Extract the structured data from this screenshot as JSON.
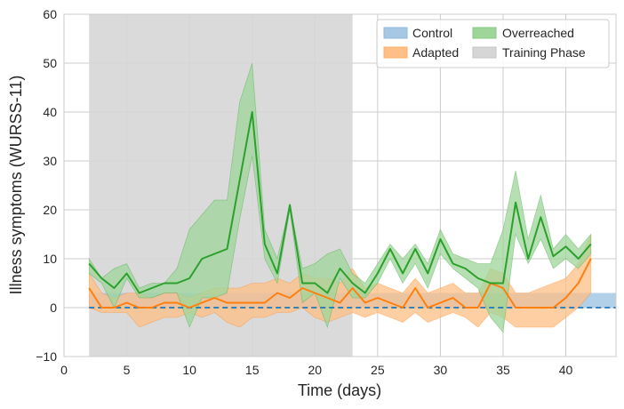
{
  "chart_data": {
    "type": "line",
    "xlabel": "Time (days)",
    "ylabel": "Illness symptoms (WURSS-11)",
    "xlim": [
      0,
      44
    ],
    "ylim": [
      -10,
      60
    ],
    "xticks": [
      0,
      5,
      10,
      15,
      20,
      25,
      30,
      35,
      40
    ],
    "yticks": [
      -10,
      0,
      10,
      20,
      30,
      40,
      50,
      60
    ],
    "grid": true,
    "legend_position": "top-right",
    "legend": [
      "Control",
      "Adapted",
      "Overreached",
      "Training Phase"
    ],
    "training_phase": {
      "label": "Training Phase",
      "x_start": 2,
      "x_end": 23,
      "color": "#d6d6d6"
    },
    "control": {
      "name": "Control",
      "color": "#1f77b4",
      "band_color": "#a6c8e5",
      "mean": 0,
      "band": [
        0,
        3
      ],
      "x_start": 2,
      "x_end": 44
    },
    "series": [
      {
        "name": "Adapted",
        "color": "#ff7f0e",
        "band_color": "#ffbf86",
        "x": [
          2,
          3,
          4,
          5,
          6,
          7,
          8,
          9,
          10,
          11,
          12,
          13,
          14,
          15,
          16,
          17,
          18,
          19,
          20,
          21,
          22,
          23,
          24,
          25,
          26,
          27,
          28,
          29,
          30,
          31,
          32,
          33,
          34,
          35,
          36,
          37,
          38,
          39,
          40,
          41,
          42
        ],
        "y": [
          4,
          0,
          0,
          1,
          0,
          0,
          1,
          1,
          0,
          1,
          2,
          1,
          1,
          1,
          1,
          3,
          2,
          4,
          3,
          2,
          1,
          4,
          1,
          2,
          1,
          0,
          4,
          0,
          1,
          2,
          0,
          0,
          5,
          4,
          0,
          0,
          0,
          0,
          2,
          5,
          10
        ],
        "lower": [
          0,
          -1,
          -1,
          -1,
          -4,
          -3,
          -2,
          -2,
          -1,
          -2,
          -1,
          -3,
          -4,
          -2,
          -2,
          -1,
          -1,
          0,
          -2,
          -3,
          -2,
          -1,
          -2,
          -1,
          -2,
          -3,
          -1,
          -3,
          -2,
          -1,
          -2,
          -4,
          -1,
          -2,
          -4,
          -4,
          -4,
          -4,
          -2,
          0,
          3
        ],
        "upper": [
          7,
          3,
          2,
          3,
          3,
          2,
          3,
          3,
          2,
          3,
          4,
          4,
          4,
          5,
          5,
          6,
          5,
          7,
          6,
          6,
          5,
          8,
          4,
          5,
          4,
          3,
          6,
          3,
          4,
          5,
          3,
          3,
          8,
          7,
          3,
          3,
          4,
          5,
          6,
          9,
          15
        ]
      },
      {
        "name": "Overreached",
        "color": "#2ca02c",
        "band_color": "#9ed69a",
        "x": [
          2,
          3,
          4,
          5,
          6,
          7,
          8,
          9,
          10,
          11,
          12,
          13,
          14,
          15,
          16,
          17,
          18,
          19,
          20,
          21,
          22,
          23,
          24,
          25,
          26,
          27,
          28,
          29,
          30,
          31,
          32,
          33,
          34,
          35,
          36,
          37,
          38,
          39,
          40,
          41,
          42
        ],
        "y": [
          9,
          6,
          4,
          7,
          3,
          4,
          5,
          5,
          6,
          10,
          11,
          12,
          26,
          40,
          13,
          7,
          21,
          5,
          5,
          3,
          8,
          5,
          3,
          7,
          12,
          7,
          12,
          7,
          14,
          9,
          8,
          6,
          5,
          5,
          21.5,
          10,
          18.5,
          10.5,
          12.5,
          10,
          13
        ],
        "lower": [
          7,
          5,
          0,
          6,
          2,
          2,
          3,
          3,
          -4,
          2,
          2,
          3,
          18,
          31,
          10,
          5,
          20,
          1,
          3,
          -4,
          6,
          2,
          2,
          5,
          10,
          5,
          9,
          4,
          11,
          8,
          6,
          4,
          -2,
          -5,
          15,
          9,
          14,
          8,
          10,
          8,
          11
        ],
        "upper": [
          10,
          6,
          8,
          9,
          4,
          5,
          5,
          8,
          16,
          19,
          22,
          22,
          42,
          50,
          16,
          10,
          21,
          8,
          9,
          11,
          12,
          7,
          5,
          9,
          13,
          10,
          13,
          9,
          16,
          11,
          10,
          9,
          9,
          16,
          28,
          14,
          23,
          12,
          15,
          12,
          15
        ]
      }
    ]
  }
}
